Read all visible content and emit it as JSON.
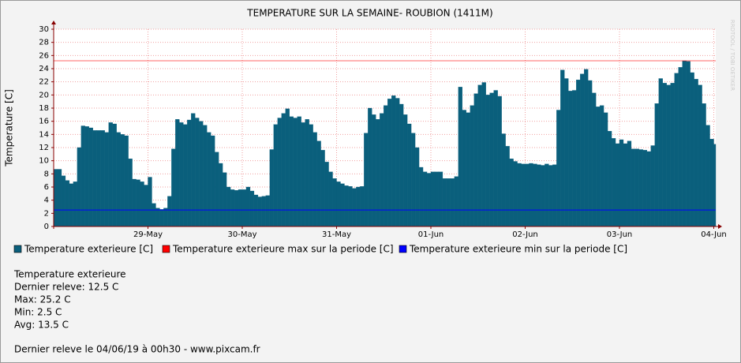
{
  "chart_data": {
    "type": "step-area",
    "title": "TEMPERATURE SUR LA SEMAINE- ROUBION (1411M)",
    "y_label": "Temperature [C]",
    "watermark": "RRDTOOL / TOBI OETIKER",
    "x": [
      0,
      1,
      2,
      3,
      4,
      5,
      6,
      7,
      8,
      9,
      10,
      11,
      12,
      13,
      14,
      15,
      16,
      17,
      18,
      19,
      20,
      21,
      22,
      23,
      24,
      25,
      26,
      27,
      28,
      29,
      30,
      31,
      32,
      33,
      34,
      35,
      36,
      37,
      38,
      39,
      40,
      41,
      42,
      43,
      44,
      45,
      46,
      47,
      48,
      49,
      50,
      51,
      52,
      53,
      54,
      55,
      56,
      57,
      58,
      59,
      60,
      61,
      62,
      63,
      64,
      65,
      66,
      67,
      68,
      69,
      70,
      71,
      72,
      73,
      74,
      75,
      76,
      77,
      78,
      79,
      80,
      81,
      82,
      83,
      84,
      85,
      86,
      87,
      88,
      89,
      90,
      91,
      92,
      93,
      94,
      95,
      96,
      97,
      98,
      99,
      100,
      101,
      102,
      103,
      104,
      105,
      106,
      107,
      108,
      109,
      110,
      111,
      112,
      113,
      114,
      115,
      116,
      117,
      118,
      119,
      120,
      121,
      122,
      123,
      124,
      125,
      126,
      127,
      128,
      129,
      130,
      131,
      132,
      133,
      134,
      135,
      136,
      137,
      138,
      139,
      140,
      141,
      142,
      143,
      144,
      145,
      146,
      147,
      148,
      149,
      150,
      151,
      152,
      153,
      154,
      155,
      156,
      157,
      158,
      159,
      160,
      161,
      162,
      163,
      164,
      165,
      166,
      167,
      168
    ],
    "series": [
      {
        "name": "Temperature exterieure [C]",
        "color": "#0a5f7c",
        "values": [
          8.7,
          8.7,
          7.7,
          7.0,
          6.5,
          6.8,
          12.0,
          15.3,
          15.2,
          15.0,
          14.6,
          14.6,
          14.6,
          14.3,
          15.8,
          15.6,
          14.3,
          14.0,
          13.8,
          10.3,
          7.2,
          7.1,
          6.8,
          6.3,
          7.5,
          3.5,
          2.8,
          2.6,
          2.8,
          4.6,
          11.8,
          16.3,
          15.8,
          15.5,
          16.2,
          17.2,
          16.5,
          16.0,
          15.4,
          14.3,
          13.8,
          11.3,
          9.6,
          8.2,
          6.0,
          5.6,
          5.5,
          5.6,
          5.6,
          6.0,
          5.4,
          4.8,
          4.5,
          4.6,
          4.7,
          11.7,
          15.5,
          16.5,
          17.2,
          17.9,
          16.7,
          16.5,
          16.7,
          15.8,
          16.3,
          15.5,
          14.3,
          13.0,
          11.6,
          9.8,
          8.3,
          7.3,
          6.8,
          6.5,
          6.2,
          6.1,
          5.8,
          6.0,
          6.1,
          14.2,
          18.0,
          17.0,
          16.3,
          17.2,
          18.4,
          19.4,
          19.9,
          19.5,
          18.6,
          17.0,
          15.6,
          14.2,
          12.0,
          9.0,
          8.3,
          8.1,
          8.3,
          8.3,
          8.3,
          7.3,
          7.3,
          7.3,
          7.6,
          21.2,
          17.7,
          17.3,
          18.4,
          20.2,
          21.5,
          21.9,
          20.0,
          20.3,
          20.7,
          19.8,
          14.1,
          12.2,
          10.3,
          9.9,
          9.6,
          9.5,
          9.5,
          9.6,
          9.5,
          9.4,
          9.3,
          9.5,
          9.3,
          9.4,
          17.7,
          23.8,
          22.5,
          20.6,
          20.7,
          22.3,
          23.2,
          23.9,
          22.2,
          20.3,
          18.2,
          18.4,
          17.3,
          14.5,
          13.4,
          12.6,
          13.2,
          12.6,
          13.0,
          11.8,
          11.8,
          11.7,
          11.6,
          11.4,
          12.3,
          18.7,
          22.5,
          21.8,
          21.5,
          21.8,
          23.3,
          24.2,
          25.2,
          25.1,
          23.4,
          22.4,
          21.5,
          18.7,
          15.4,
          13.3,
          12.5
        ]
      },
      {
        "name": "Temperature exterieure max sur la periode [C]",
        "color": "#ff0000",
        "value": 25.2
      },
      {
        "name": "Temperature exterieure min sur la periode [C]",
        "color": "#0000ff",
        "value": 2.5
      }
    ],
    "xlim": [
      0,
      168.5
    ],
    "xticks": [
      {
        "value": 24,
        "label": "29-May"
      },
      {
        "value": 48,
        "label": "30-May"
      },
      {
        "value": 72,
        "label": "31-May"
      },
      {
        "value": 96,
        "label": "01-Jun"
      },
      {
        "value": 120,
        "label": "02-Jun"
      },
      {
        "value": 144,
        "label": "03-Jun"
      },
      {
        "value": 168,
        "label": "04-Jun"
      }
    ],
    "ylim": [
      0,
      30
    ],
    "yticks": [
      0,
      2,
      4,
      6,
      8,
      10,
      12,
      14,
      16,
      18,
      20,
      22,
      24,
      26,
      28,
      30
    ],
    "grid": true
  },
  "summary": [
    "Temperature exterieure",
    "Dernier releve: 12.5 C",
    "Max: 25.2 C",
    "Min: 2.5 C",
    "Avg: 13.5 C"
  ],
  "footer": "Dernier releve le 04/06/19 à 00h30 - www.pixcam.fr"
}
